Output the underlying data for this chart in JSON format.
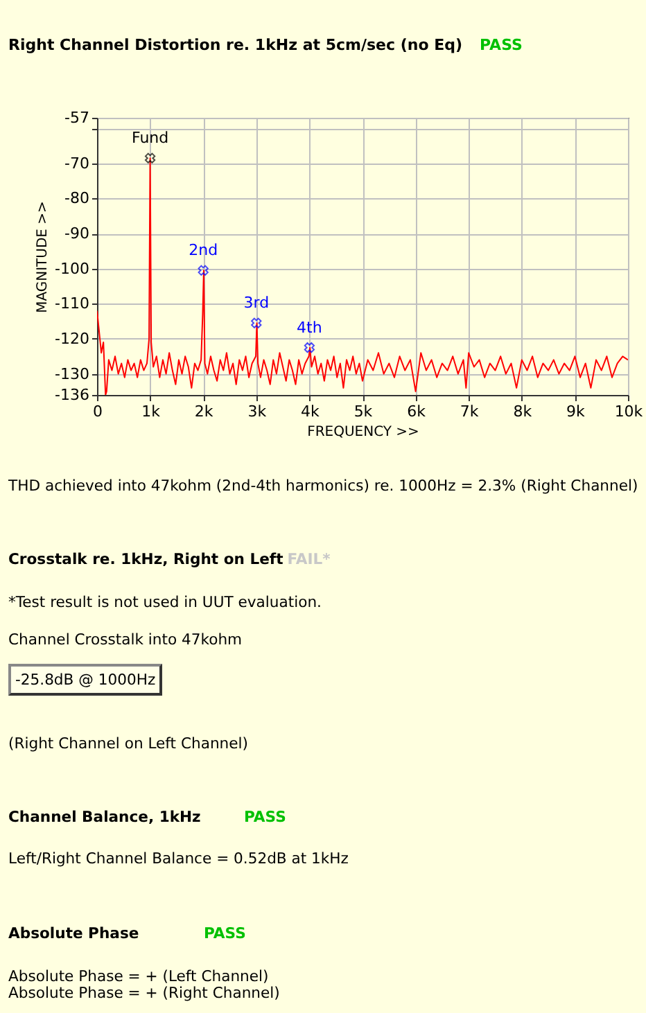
{
  "chart_data": {
    "type": "line",
    "title": "Right Channel Distortion re. 1kHz at 5cm/sec (no Eq)",
    "subtitle": "PASS",
    "xlabel": "FREQUENCY >>",
    "ylabel": "MAGNITUDE >>",
    "x": [
      0,
      40,
      80,
      120,
      160,
      180,
      220,
      280,
      340,
      400,
      460,
      520,
      580,
      640,
      700,
      760,
      820,
      880,
      940,
      980,
      1000,
      1020,
      1060,
      1120,
      1180,
      1240,
      1300,
      1360,
      1420,
      1480,
      1540,
      1600,
      1660,
      1720,
      1780,
      1840,
      1900,
      1960,
      1990,
      2010,
      2030,
      2080,
      2140,
      2200,
      2260,
      2320,
      2380,
      2440,
      2500,
      2560,
      2620,
      2680,
      2740,
      2800,
      2860,
      2920,
      2990,
      3010,
      3030,
      3080,
      3140,
      3200,
      3260,
      3320,
      3380,
      3440,
      3500,
      3560,
      3620,
      3680,
      3740,
      3800,
      3860,
      3920,
      3990,
      4010,
      4040,
      4100,
      4160,
      4220,
      4280,
      4340,
      4400,
      4460,
      4520,
      4580,
      4640,
      4700,
      4760,
      4820,
      4880,
      4940,
      5000,
      5100,
      5200,
      5300,
      5400,
      5500,
      5600,
      5700,
      5800,
      5900,
      6000,
      6100,
      6200,
      6300,
      6400,
      6500,
      6600,
      6700,
      6800,
      6900,
      6950,
      7000,
      7100,
      7200,
      7300,
      7400,
      7500,
      7600,
      7700,
      7800,
      7900,
      8000,
      8100,
      8200,
      8300,
      8400,
      8500,
      8600,
      8700,
      8800,
      8900,
      9000,
      9100,
      9200,
      9300,
      9400,
      9500,
      9600,
      9700,
      9800,
      9900,
      10000
    ],
    "series": [
      {
        "color": "#ff0000",
        "values": [
          -112,
          -118,
          -124,
          -121,
          -136,
          -135,
          -126,
          -129,
          -125,
          -130,
          -127,
          -131,
          -126,
          -129,
          -127,
          -131,
          -126,
          -129,
          -127,
          -120,
          -68.5,
          -121,
          -128,
          -125,
          -131,
          -126,
          -130,
          -124,
          -129,
          -133,
          -126,
          -130,
          -125,
          -128,
          -134,
          -127,
          -129,
          -126,
          -113,
          -100.5,
          -127,
          -130,
          -125,
          -129,
          -132,
          -126,
          -129,
          -124,
          -130,
          -127,
          -133,
          -126,
          -129,
          -125,
          -131,
          -127,
          -125,
          -115.5,
          -127,
          -131,
          -126,
          -129,
          -133,
          -126,
          -130,
          -124,
          -128,
          -132,
          -126,
          -129,
          -133,
          -126,
          -130,
          -127,
          -125,
          -122.5,
          -128,
          -125,
          -130,
          -127,
          -132,
          -126,
          -129,
          -125,
          -131,
          -127,
          -134,
          -126,
          -129,
          -125,
          -130,
          -127,
          -132,
          -126,
          -129,
          -124,
          -130,
          -127,
          -131,
          -125,
          -129,
          -126,
          -135,
          -124,
          -129,
          -126,
          -131,
          -127,
          -129,
          -125,
          -130,
          -126,
          -134,
          -124,
          -128,
          -126,
          -131,
          -127,
          -129,
          -125,
          -130,
          -127,
          -134,
          -126,
          -129,
          -125,
          -131,
          -127,
          -129,
          -126,
          -130,
          -127,
          -129,
          -125,
          -131,
          -127,
          -134,
          -126,
          -129,
          -125,
          -131,
          -127,
          -125,
          -126
        ]
      }
    ],
    "xlim": [
      0,
      10000
    ],
    "xticks": [
      0,
      {
        "value": 1000,
        "label": "1k"
      },
      {
        "value": 2000,
        "label": "2k"
      },
      {
        "value": 3000,
        "label": "3k"
      },
      {
        "value": 4000,
        "label": "4k"
      },
      {
        "value": 5000,
        "label": "5k"
      },
      {
        "value": 6000,
        "label": "6k"
      },
      {
        "value": 7000,
        "label": "7k"
      },
      {
        "value": 8000,
        "label": "8k"
      },
      {
        "value": 9000,
        "label": "9k"
      },
      {
        "value": 10000,
        "label": "10k"
      }
    ],
    "ylim": [
      -136,
      -57
    ],
    "yticks": [
      -136,
      -130,
      -120,
      -110,
      -100,
      -90,
      -80,
      -70,
      {
        "value": -60,
        "label": null
      },
      -57
    ],
    "grid": true,
    "annotations": [
      {
        "text": "Fund",
        "x": 1000,
        "y": -68.5
      },
      {
        "text": "2nd",
        "x": 2000,
        "y": -100.5
      },
      {
        "text": "3rd",
        "x": 3000,
        "y": -115.5
      },
      {
        "text": "4th",
        "x": 4000,
        "y": -122.5
      },
      "THD achieved into 47kohm (2nd-4th harmonics) re. 1000Hz = 2.3% (Right Channel)",
      "Crosstalk re. 1kHz, Right on Left",
      "FAIL*",
      "*Test result is not used in UUT evaluation.",
      "Channel Crosstalk into 47kohm",
      "-25.8dB @ 1000Hz",
      "(Right Channel on Left Channel)",
      "Channel Balance, 1kHz",
      "PASS",
      "Left/Right Channel Balance = 0.52dB at 1kHz",
      "Absolute Phase",
      "PASS",
      "Absolute Phase = + (Left Channel)",
      "Absolute Phase = + (Right Channel)"
    ]
  }
}
